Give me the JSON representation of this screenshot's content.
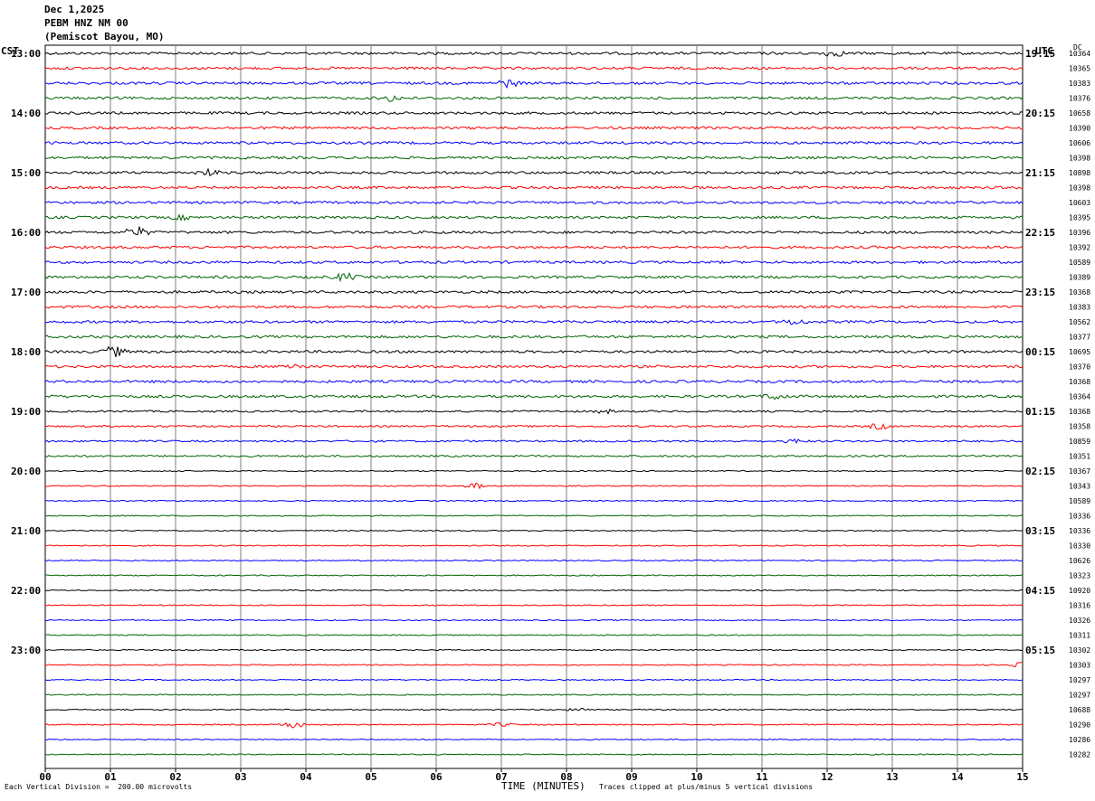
{
  "header": {
    "date": "Dec 1,2025",
    "station": "PEBM HNZ NM 00",
    "location": "(Pemiscot Bayou, MO)"
  },
  "left_label": "CST",
  "right_label": "UTC",
  "dc_label": "DC",
  "footer": {
    "scale_note": "Each Vertical Division =  200.00 microvolts",
    "xlabel": "TIME (MINUTES)",
    "clip_note": "Traces clipped at plus/minus 5 vertical divisions"
  },
  "colors": {
    "black": "#000000",
    "red": "#ff0000",
    "blue": "#0000ff",
    "green": "#006400",
    "grid": "#7f7f7f"
  },
  "chart_data": {
    "type": "line",
    "x_ticks": [
      "00",
      "01",
      "02",
      "03",
      "04",
      "05",
      "06",
      "07",
      "08",
      "09",
      "10",
      "11",
      "12",
      "13",
      "14",
      "15"
    ],
    "xlim": [
      0,
      15
    ],
    "trace_color_cycle": [
      "black",
      "red",
      "blue",
      "green"
    ],
    "minutes_per_trace": 15,
    "cst_hour_labels": [
      "13:00",
      "14:00",
      "15:00",
      "16:00",
      "17:00",
      "18:00",
      "19:00",
      "20:00",
      "21:00",
      "22:00",
      "23:00"
    ],
    "utc_hour_labels": [
      "19:15",
      "20:15",
      "21:15",
      "22:15",
      "23:15",
      "00:15",
      "01:15",
      "02:15",
      "03:15",
      "04:15",
      "05:15"
    ],
    "dc_offsets": [
      10364,
      10365,
      10383,
      10376,
      10658,
      10390,
      10606,
      10398,
      10898,
      10398,
      10603,
      10395,
      10396,
      10392,
      10589,
      10389,
      10368,
      10383,
      10562,
      10377,
      10695,
      10370,
      10368,
      10364,
      10368,
      10358,
      10859,
      10351,
      10367,
      10343,
      10589,
      10336,
      10336,
      10330,
      10626,
      10323,
      10920,
      10316,
      10326,
      10311,
      10302,
      10303,
      10297,
      10297,
      10688,
      10290,
      10286,
      10282
    ],
    "trace_activity": [
      {
        "trace": 0,
        "minute": 12.1,
        "amp": 3
      },
      {
        "trace": 2,
        "minute": 7.1,
        "amp": 4
      },
      {
        "trace": 3,
        "minute": 5.3,
        "amp": 3
      },
      {
        "trace": 8,
        "minute": 2.5,
        "amp": 3
      },
      {
        "trace": 11,
        "minute": 2.1,
        "amp": 2
      },
      {
        "trace": 12,
        "minute": 1.4,
        "amp": 6
      },
      {
        "trace": 15,
        "minute": 4.6,
        "amp": 4
      },
      {
        "trace": 18,
        "minute": 11.5,
        "amp": 3
      },
      {
        "trace": 20,
        "minute": 1.05,
        "amp": 6
      },
      {
        "trace": 21,
        "minute": 3.8,
        "amp": 3
      },
      {
        "trace": 23,
        "minute": 11.2,
        "amp": 3
      },
      {
        "trace": 24,
        "minute": 8.6,
        "amp": 2
      },
      {
        "trace": 25,
        "minute": 12.8,
        "amp": 3
      },
      {
        "trace": 26,
        "minute": 11.5,
        "amp": 2
      },
      {
        "trace": 29,
        "minute": 6.6,
        "amp": 3
      },
      {
        "trace": 41,
        "minute": 15.0,
        "amp": 3
      },
      {
        "trace": 44,
        "minute": 8.2,
        "amp": 2
      },
      {
        "trace": 45,
        "minute": 3.8,
        "amp": 4
      },
      {
        "trace": 45,
        "minute": 7.0,
        "amp": 2
      }
    ]
  }
}
